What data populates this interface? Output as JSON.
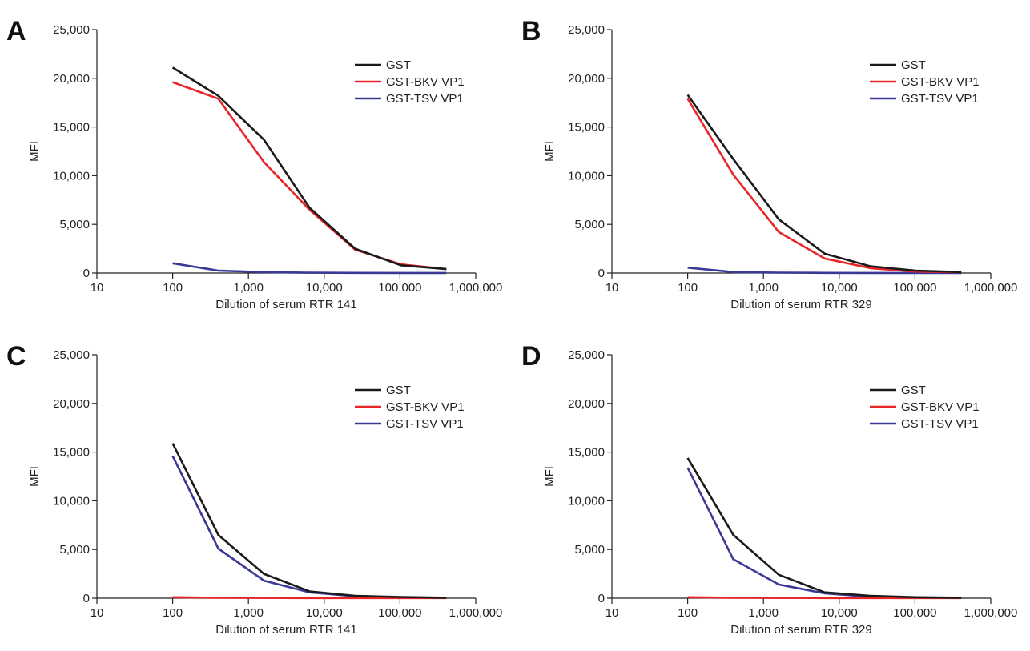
{
  "chart_data": [
    {
      "type": "line",
      "panel_label": "A",
      "xlabel": "Dilution of serum RTR 141",
      "ylabel": "MFI",
      "x_scale": "log",
      "xlim": [
        10,
        1000000
      ],
      "ylim": [
        0,
        25000
      ],
      "xticks": [
        "10",
        "100",
        "1,000",
        "10,000",
        "100,000",
        "1,000,000"
      ],
      "yticks": [
        "0",
        "5,000",
        "10,000",
        "15,000",
        "20,000",
        "25,000"
      ],
      "legend_position": "top-right",
      "grid": false,
      "x": [
        100,
        400,
        1600,
        6400,
        25600,
        102400,
        409600
      ],
      "series": [
        {
          "name": "GST",
          "color": "#1a1a1a",
          "values": [
            21100,
            18200,
            13700,
            6700,
            2500,
            800,
            400
          ]
        },
        {
          "name": "GST-BKV VP1",
          "color": "#e8262a",
          "values": [
            19600,
            17900,
            11400,
            6500,
            2400,
            900,
            400
          ]
        },
        {
          "name": "GST-TSV VP1",
          "color": "#3a3a96",
          "values": [
            1000,
            250,
            100,
            30,
            20,
            10,
            10
          ]
        }
      ]
    },
    {
      "type": "line",
      "panel_label": "B",
      "xlabel": "Dilution of serum RTR 329",
      "ylabel": "MFI",
      "x_scale": "log",
      "xlim": [
        10,
        1000000
      ],
      "ylim": [
        0,
        25000
      ],
      "xticks": [
        "10",
        "100",
        "1,000",
        "10,000",
        "100,000",
        "1,000,000"
      ],
      "yticks": [
        "0",
        "5,000",
        "10,000",
        "15,000",
        "20,000",
        "25,000"
      ],
      "legend_position": "top-right",
      "grid": false,
      "x": [
        100,
        400,
        1600,
        6400,
        25600,
        102400,
        409600
      ],
      "series": [
        {
          "name": "GST",
          "color": "#1a1a1a",
          "values": [
            18300,
            11700,
            5500,
            2000,
            700,
            250,
            100
          ]
        },
        {
          "name": "GST-BKV VP1",
          "color": "#e8262a",
          "values": [
            17900,
            10100,
            4200,
            1500,
            500,
            150,
            80
          ]
        },
        {
          "name": "GST-TSV VP1",
          "color": "#3a3a96",
          "values": [
            550,
            100,
            40,
            20,
            10,
            10,
            10
          ]
        }
      ]
    },
    {
      "type": "line",
      "panel_label": "C",
      "xlabel": "Dilution of serum RTR 141",
      "ylabel": "MFI",
      "x_scale": "log",
      "xlim": [
        10,
        1000000
      ],
      "ylim": [
        0,
        25000
      ],
      "xticks": [
        "10",
        "100",
        "1,000",
        "10,000",
        "100,000",
        "1,000,000"
      ],
      "yticks": [
        "0",
        "5,000",
        "10,000",
        "15,000",
        "20,000",
        "25,000"
      ],
      "legend_position": "top-right",
      "grid": false,
      "x": [
        100,
        400,
        1600,
        6400,
        25600,
        102400,
        409600
      ],
      "series": [
        {
          "name": "GST",
          "color": "#1a1a1a",
          "values": [
            15900,
            6500,
            2500,
            700,
            250,
            120,
            50
          ]
        },
        {
          "name": "GST-BKV VP1",
          "color": "#e8262a",
          "values": [
            100,
            40,
            30,
            20,
            20,
            20,
            20
          ]
        },
        {
          "name": "GST-TSV VP1",
          "color": "#3a3a96",
          "values": [
            14600,
            5100,
            1800,
            600,
            200,
            80,
            40
          ]
        }
      ]
    },
    {
      "type": "line",
      "panel_label": "D",
      "xlabel": "Dilution of serum RTR 329",
      "ylabel": "MFI",
      "x_scale": "log",
      "xlim": [
        10,
        1000000
      ],
      "ylim": [
        0,
        25000
      ],
      "xticks": [
        "10",
        "100",
        "1,000",
        "10,000",
        "100,000",
        "1,000,000"
      ],
      "yticks": [
        "0",
        "5,000",
        "10,000",
        "15,000",
        "20,000",
        "25,000"
      ],
      "legend_position": "top-right",
      "grid": false,
      "x": [
        100,
        400,
        1600,
        6400,
        25600,
        102400,
        409600
      ],
      "series": [
        {
          "name": "GST",
          "color": "#1a1a1a",
          "values": [
            14400,
            6500,
            2400,
            600,
            250,
            100,
            50
          ]
        },
        {
          "name": "GST-BKV VP1",
          "color": "#e8262a",
          "values": [
            100,
            40,
            30,
            20,
            20,
            20,
            20
          ]
        },
        {
          "name": "GST-TSV VP1",
          "color": "#3a3a96",
          "values": [
            13400,
            4000,
            1400,
            500,
            150,
            60,
            30
          ]
        }
      ]
    }
  ]
}
